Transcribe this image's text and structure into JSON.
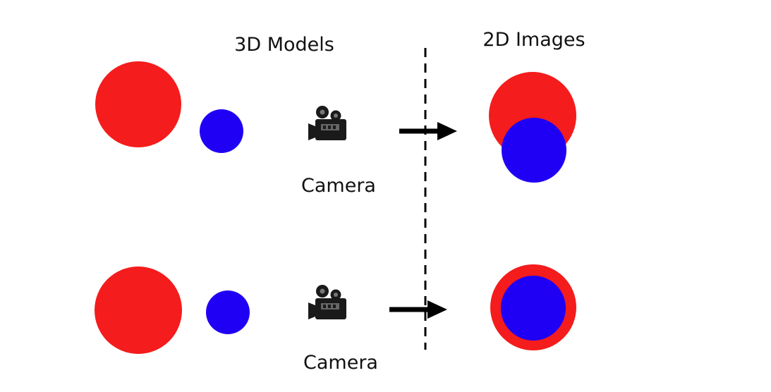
{
  "headings": {
    "left": "3D Models",
    "right": "2D Images"
  },
  "scenes": [
    {
      "camera_label": "Camera",
      "projection": "partial-overlap"
    },
    {
      "camera_label": "Camera",
      "projection": "full-overlap"
    }
  ],
  "colors": {
    "large_sphere": "#f41c1c",
    "small_sphere": "#2000f4",
    "arrow": "#000000",
    "divider": "#000000",
    "camera": "#1a1a1a"
  },
  "icons": [
    "video-camera-icon",
    "right-arrow-icon"
  ]
}
